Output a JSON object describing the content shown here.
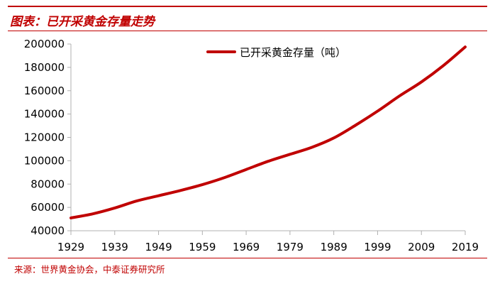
{
  "colors": {
    "accent": "#c00000",
    "axis": "#b0b0b0",
    "text": "#000000"
  },
  "header": {
    "title": "图表：已开采黄金存量走势"
  },
  "footer": {
    "source": "来源：世界黄金协会，中泰证券研究所"
  },
  "chart_data": {
    "type": "line",
    "title": "",
    "xlabel": "",
    "ylabel": "",
    "xlim": [
      1929,
      2019
    ],
    "ylim": [
      40000,
      200000
    ],
    "x_ticks": [
      "1929",
      "1939",
      "1949",
      "1959",
      "1969",
      "1979",
      "1989",
      "1999",
      "2009",
      "2019"
    ],
    "y_ticks": [
      "200000",
      "180000",
      "160000",
      "140000",
      "120000",
      "100000",
      "80000",
      "60000",
      "40000"
    ],
    "grid": false,
    "legend_position": "top-center",
    "series": [
      {
        "name": "已开采黄金存量（吨）",
        "color": "#c00000",
        "x": [
          1929,
          1934,
          1939,
          1944,
          1949,
          1954,
          1959,
          1964,
          1969,
          1974,
          1979,
          1984,
          1989,
          1994,
          1999,
          2004,
          2009,
          2014,
          2019
        ],
        "y": [
          51000,
          54500,
          59500,
          65500,
          70000,
          74500,
          79500,
          85500,
          92500,
          99500,
          105500,
          111500,
          119500,
          130500,
          142500,
          155500,
          167500,
          181500,
          197500
        ]
      }
    ]
  }
}
